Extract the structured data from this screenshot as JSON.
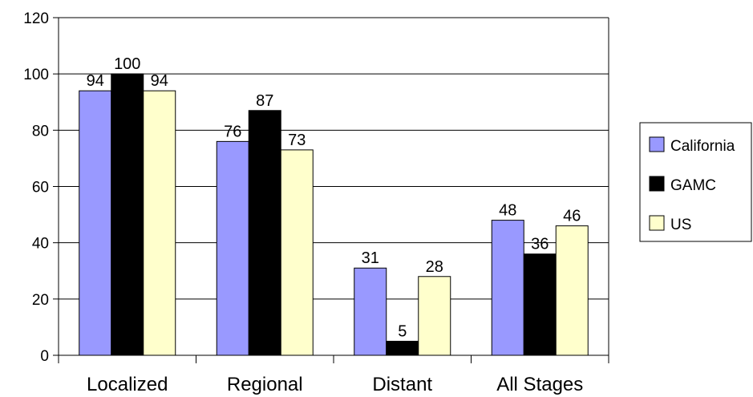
{
  "chart_data": {
    "type": "bar",
    "categories": [
      "Localized",
      "Regional",
      "Distant",
      "All Stages"
    ],
    "series": [
      {
        "name": "California",
        "values": [
          94,
          76,
          31,
          48
        ],
        "color": "#9999ff"
      },
      {
        "name": "GAMC",
        "values": [
          100,
          87,
          5,
          36
        ],
        "color": "#000000"
      },
      {
        "name": "US",
        "values": [
          94,
          73,
          28,
          46
        ],
        "color": "#ffffcc"
      }
    ],
    "yticks": [
      0,
      20,
      40,
      60,
      80,
      100,
      120
    ],
    "ylim": [
      0,
      120
    ],
    "grid": true,
    "legend_position": "right",
    "title": "",
    "xlabel": "",
    "ylabel": ""
  }
}
